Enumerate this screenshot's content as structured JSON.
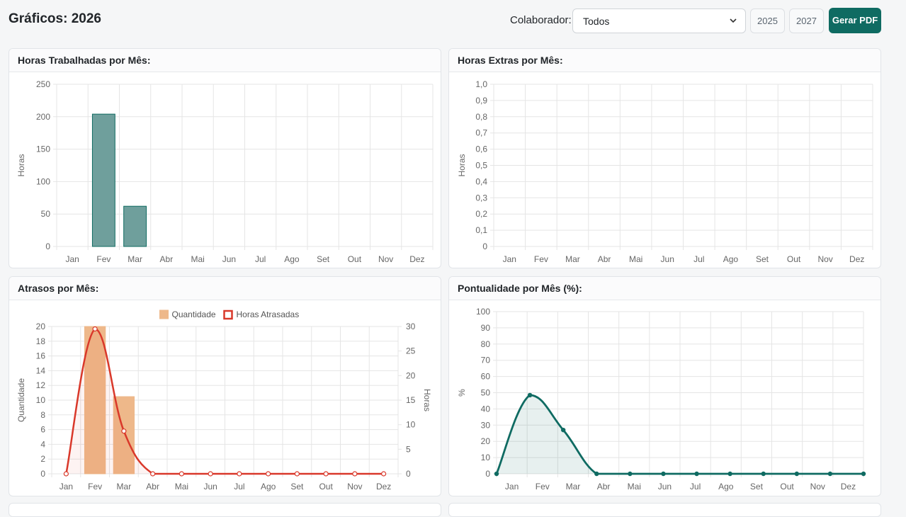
{
  "header": {
    "title": "Gráficos: 2026",
    "collaborator_label": "Colaborador:",
    "collaborator_value": "Todos",
    "prev_year": "2025",
    "next_year": "2027",
    "pdf_button": "Gerar PDF"
  },
  "colors": {
    "primary": "#0f6b62",
    "bar_teal": "#6f9f9c",
    "bar_orange": "#eeb88a",
    "line_red": "#d9382a"
  },
  "chart_data": [
    {
      "id": "horas",
      "title": "Horas Trabalhadas por Mês:",
      "type": "bar",
      "categories": [
        "Jan",
        "Fev",
        "Mar",
        "Abr",
        "Mai",
        "Jun",
        "Jul",
        "Ago",
        "Set",
        "Out",
        "Nov",
        "Dez"
      ],
      "values": [
        0,
        204,
        62,
        0,
        0,
        0,
        0,
        0,
        0,
        0,
        0,
        0
      ],
      "ylabel": "Horas",
      "ylim": [
        0,
        250
      ],
      "yticks": [
        "0",
        "50",
        "100",
        "150",
        "200",
        "250"
      ],
      "grid": true
    },
    {
      "id": "extras",
      "title": "Horas Extras por Mês:",
      "type": "bar",
      "categories": [
        "Jan",
        "Fev",
        "Mar",
        "Abr",
        "Mai",
        "Jun",
        "Jul",
        "Ago",
        "Set",
        "Out",
        "Nov",
        "Dez"
      ],
      "values": [
        0,
        0,
        0,
        0,
        0,
        0,
        0,
        0,
        0,
        0,
        0,
        0
      ],
      "ylabel": "Horas",
      "ylim": [
        0,
        1
      ],
      "yticks": [
        "0",
        "0,1",
        "0,2",
        "0,3",
        "0,4",
        "0,5",
        "0,6",
        "0,7",
        "0,8",
        "0,9",
        "1,0"
      ],
      "grid": true
    },
    {
      "id": "atrasos",
      "title": "Atrasos por Mês:",
      "type": "bar",
      "categories": [
        "Jan",
        "Fev",
        "Mar",
        "Abr",
        "Mai",
        "Jun",
        "Jul",
        "Ago",
        "Set",
        "Out",
        "Nov",
        "Dez"
      ],
      "series": [
        {
          "name": "Quantidade",
          "kind": "bar",
          "axis": "left",
          "values": [
            0,
            21,
            11,
            0,
            0,
            0,
            0,
            0,
            0,
            0,
            0,
            0
          ]
        },
        {
          "name": "Horas Atrasadas",
          "kind": "line",
          "axis": "right",
          "values": [
            0,
            29.5,
            8.7,
            0,
            0,
            0,
            0,
            0,
            0,
            0,
            0,
            0
          ]
        }
      ],
      "ylabel": "Quantidade",
      "y2label": "Horas",
      "ylim": [
        0,
        21
      ],
      "y2lim": [
        0,
        30
      ],
      "yticks": [
        "0",
        "2",
        "4",
        "6",
        "8",
        "10",
        "12",
        "14",
        "16",
        "18",
        "20"
      ],
      "y2ticks": [
        "0",
        "5",
        "10",
        "15",
        "20",
        "25",
        "30"
      ],
      "legend": "top-center",
      "grid": true
    },
    {
      "id": "pontualidade",
      "title": "Pontualidade por Mês (%):",
      "type": "area",
      "categories": [
        "Jan",
        "Fev",
        "Mar",
        "Abr",
        "Mai",
        "Jun",
        "Jul",
        "Ago",
        "Set",
        "Out",
        "Nov",
        "Dez"
      ],
      "values": [
        0,
        48.5,
        27,
        0,
        0,
        0,
        0,
        0,
        0,
        0,
        0,
        0
      ],
      "ylabel": "%",
      "ylim": [
        0,
        100
      ],
      "yticks": [
        "0",
        "10",
        "20",
        "30",
        "40",
        "50",
        "60",
        "70",
        "80",
        "90",
        "100"
      ],
      "grid": true
    }
  ]
}
